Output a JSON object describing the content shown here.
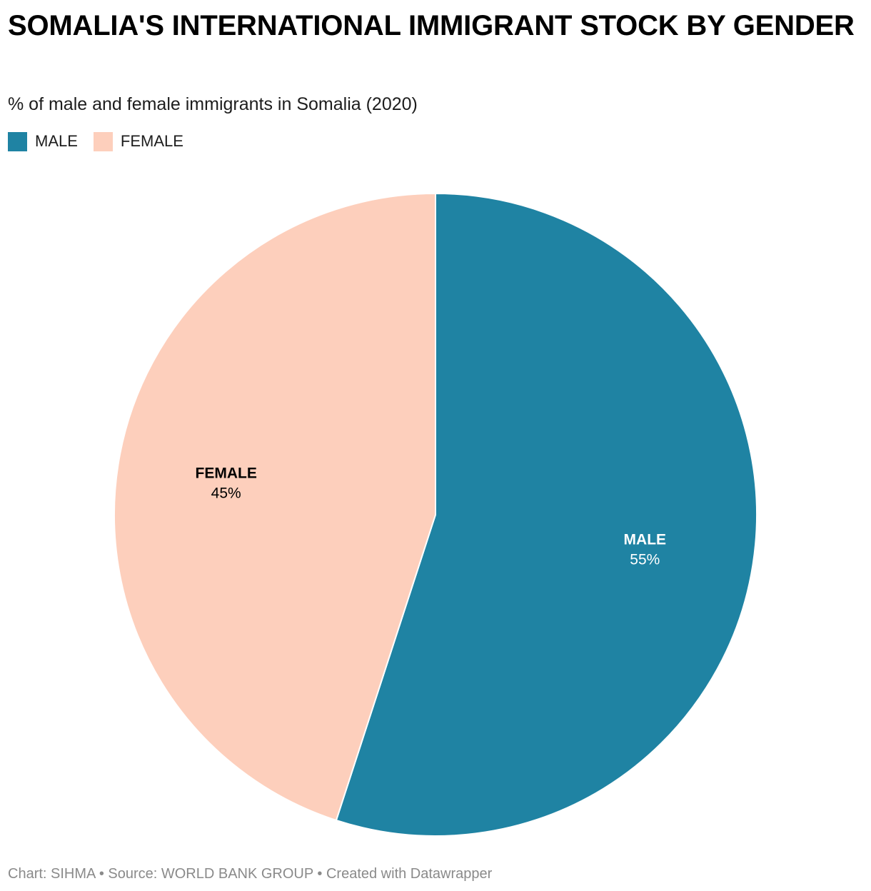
{
  "title": "SOMALIA'S INTERNATIONAL IMMIGRANT STOCK BY GENDER",
  "subtitle": "% of male and female immigrants in Somalia (2020)",
  "legend": [
    {
      "label": "MALE",
      "color": "#1f83a3"
    },
    {
      "label": "FEMALE",
      "color": "#fdcfbc"
    }
  ],
  "chart_data": {
    "type": "pie",
    "title": "SOMALIA'S INTERNATIONAL IMMIGRANT STOCK BY GENDER",
    "subtitle": "% of male and female immigrants in Somalia (2020)",
    "categories": [
      "MALE",
      "FEMALE"
    ],
    "values": [
      55,
      45
    ],
    "value_labels": [
      "55%",
      "45%"
    ],
    "colors": [
      "#1f83a3",
      "#fdcfbc"
    ],
    "label_colors": [
      "#ffffff",
      "#000000"
    ],
    "legend_position": "top-left"
  },
  "footer": "Chart: SIHMA • Source: WORLD BANK GROUP • Created with Datawrapper"
}
